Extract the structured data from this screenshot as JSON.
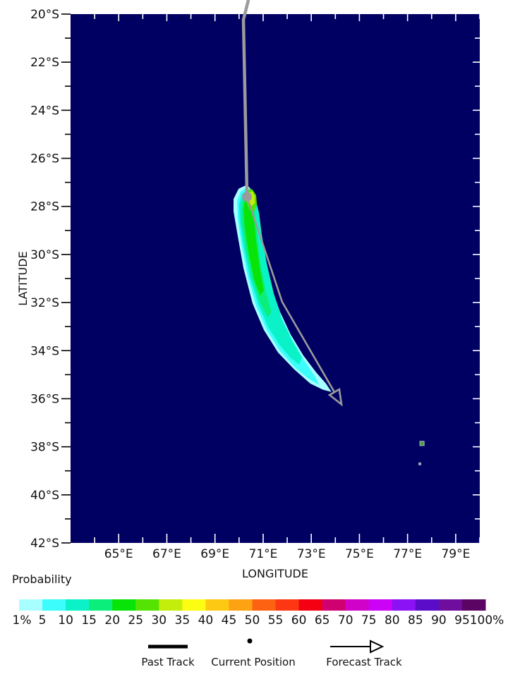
{
  "chart_data": {
    "type": "heatmap",
    "title": "",
    "xlabel": "LONGITUDE",
    "ylabel": "LATITUDE",
    "lon_range": [
      63,
      80
    ],
    "lat_range": [
      20,
      42
    ],
    "lon_tick_labels": [
      "65°E",
      "67°E",
      "69°E",
      "71°E",
      "73°E",
      "75°E",
      "77°E",
      "79°E"
    ],
    "lon_tick_values": [
      65,
      67,
      69,
      71,
      73,
      75,
      77,
      79
    ],
    "lat_tick_labels": [
      "20°S",
      "22°S",
      "24°S",
      "26°S",
      "28°S",
      "30°S",
      "32°S",
      "34°S",
      "36°S",
      "38°S",
      "40°S",
      "42°S"
    ],
    "lat_tick_values": [
      20,
      22,
      24,
      26,
      28,
      30,
      32,
      34,
      36,
      38,
      40,
      42
    ],
    "map_background": "#000063",
    "track_color": "#9b9b9b",
    "colorbar": {
      "title": "Probability",
      "tick_labels": [
        "1%",
        "5",
        "10",
        "15",
        "20",
        "25",
        "30",
        "35",
        "40",
        "45",
        "50",
        "55",
        "60",
        "65",
        "70",
        "75",
        "80",
        "85",
        "90",
        "95",
        "100%"
      ],
      "colors": [
        "#a8ffff",
        "#3cfcfc",
        "#0cf2c8",
        "#0cee7c",
        "#08e408",
        "#55e303",
        "#c3ee0b",
        "#fdfd12",
        "#fdc912",
        "#fda312",
        "#fd6212",
        "#fd3712",
        "#f50013",
        "#d10070",
        "#d002c9",
        "#cb02f5",
        "#8a12f5",
        "#5a0cc8",
        "#6e0d9e",
        "#5c0464"
      ]
    },
    "past_track": [
      [
        70.39,
        19.41
      ],
      [
        70.18,
        20.23
      ],
      [
        70.33,
        27.6
      ]
    ],
    "current_position": [
      70.33,
      27.6
    ],
    "forecast_track": [
      [
        70.33,
        27.6
      ],
      [
        71.79,
        31.97
      ],
      [
        74.08,
        35.93
      ]
    ],
    "probability_contours": [
      {
        "level": "1",
        "color": "#a8ffff",
        "points": [
          [
            70.33,
            27.1
          ],
          [
            69.98,
            27.27
          ],
          [
            69.77,
            27.69
          ],
          [
            69.77,
            28.21
          ],
          [
            69.92,
            29.09
          ],
          [
            70.18,
            30.56
          ],
          [
            70.56,
            32.03
          ],
          [
            71.03,
            33.14
          ],
          [
            71.62,
            34.08
          ],
          [
            72.29,
            34.78
          ],
          [
            72.96,
            35.37
          ],
          [
            73.49,
            35.63
          ],
          [
            73.84,
            35.72
          ],
          [
            73.61,
            35.37
          ],
          [
            73.2,
            34.9
          ],
          [
            72.67,
            34.2
          ],
          [
            72.14,
            33.32
          ],
          [
            71.7,
            32.38
          ],
          [
            71.32,
            31.32
          ],
          [
            71.0,
            30.15
          ],
          [
            70.77,
            28.98
          ],
          [
            70.65,
            28.04
          ],
          [
            70.53,
            27.33
          ]
        ]
      },
      {
        "level": "5",
        "color": "#3cfcfc",
        "points": [
          [
            70.33,
            27.22
          ],
          [
            70.06,
            27.39
          ],
          [
            69.92,
            27.8
          ],
          [
            69.95,
            28.51
          ],
          [
            70.09,
            29.53
          ],
          [
            70.36,
            30.91
          ],
          [
            70.71,
            32.14
          ],
          [
            71.15,
            33.14
          ],
          [
            71.7,
            34.02
          ],
          [
            72.32,
            34.7
          ],
          [
            72.88,
            35.16
          ],
          [
            73.32,
            35.43
          ],
          [
            73.17,
            35.1
          ],
          [
            72.7,
            34.4
          ],
          [
            72.2,
            33.52
          ],
          [
            71.73,
            32.55
          ],
          [
            71.35,
            31.47
          ],
          [
            71.06,
            30.27
          ],
          [
            70.85,
            29.09
          ],
          [
            70.71,
            28.15
          ],
          [
            70.56,
            27.39
          ]
        ]
      },
      {
        "level": "10",
        "color": "#0cf2c8",
        "points": [
          [
            70.33,
            27.3
          ],
          [
            70.12,
            27.51
          ],
          [
            70.0,
            27.92
          ],
          [
            70.03,
            28.62
          ],
          [
            70.18,
            29.62
          ],
          [
            70.44,
            30.91
          ],
          [
            70.8,
            32.08
          ],
          [
            71.21,
            33.02
          ],
          [
            71.7,
            33.79
          ],
          [
            72.14,
            34.31
          ],
          [
            72.5,
            34.58
          ],
          [
            72.61,
            34.28
          ],
          [
            72.23,
            33.64
          ],
          [
            71.79,
            32.7
          ],
          [
            71.44,
            31.62
          ],
          [
            71.15,
            30.38
          ],
          [
            70.94,
            29.15
          ],
          [
            70.83,
            28.27
          ],
          [
            70.62,
            27.45
          ]
        ]
      },
      {
        "level": "15",
        "color": "#0cee7c",
        "points": [
          [
            70.36,
            27.36
          ],
          [
            70.18,
            27.6
          ],
          [
            70.09,
            28.04
          ],
          [
            70.12,
            28.74
          ],
          [
            70.27,
            29.74
          ],
          [
            70.53,
            30.97
          ],
          [
            70.86,
            31.97
          ],
          [
            71.18,
            32.61
          ],
          [
            71.35,
            32.41
          ],
          [
            71.12,
            31.56
          ],
          [
            70.91,
            30.5
          ],
          [
            70.77,
            29.39
          ],
          [
            70.68,
            28.45
          ],
          [
            70.56,
            27.57
          ]
        ]
      },
      {
        "level": "20",
        "color": "#08e408",
        "points": [
          [
            70.39,
            27.42
          ],
          [
            70.24,
            27.69
          ],
          [
            70.18,
            28.13
          ],
          [
            70.24,
            28.92
          ],
          [
            70.39,
            29.91
          ],
          [
            70.62,
            31.03
          ],
          [
            70.88,
            31.7
          ],
          [
            71.03,
            31.5
          ],
          [
            70.86,
            30.56
          ],
          [
            70.71,
            29.44
          ],
          [
            70.62,
            28.45
          ],
          [
            70.53,
            27.66
          ]
        ]
      },
      {
        "level": "25",
        "color": "#55e303",
        "points": [
          [
            70.44,
            27.27
          ],
          [
            70.3,
            27.45
          ],
          [
            70.3,
            27.8
          ],
          [
            70.44,
            28.15
          ],
          [
            70.62,
            28.21
          ],
          [
            70.74,
            27.92
          ],
          [
            70.71,
            27.54
          ],
          [
            70.56,
            27.3
          ]
        ]
      },
      {
        "level": "30",
        "color": "#c3ee0b",
        "points": [
          [
            70.47,
            27.39
          ],
          [
            70.38,
            27.57
          ],
          [
            70.41,
            27.83
          ],
          [
            70.53,
            27.98
          ],
          [
            70.65,
            27.86
          ],
          [
            70.65,
            27.57
          ],
          [
            70.56,
            27.39
          ]
        ]
      }
    ],
    "islands": [
      {
        "lon": 77.6,
        "lat": 37.86,
        "fill": "#3f9f3f",
        "edge": "#c0c0c0",
        "size": 6
      },
      {
        "lon": 77.51,
        "lat": 38.71,
        "fill": "#a0a0b8",
        "edge": "#a0a0b8",
        "size": 3
      }
    ],
    "legend": [
      {
        "symbol": "thick-line",
        "label": "Past Track"
      },
      {
        "symbol": "dot",
        "label": "Current Position"
      },
      {
        "symbol": "arrow",
        "label": "Forecast Track"
      }
    ],
    "legend_color": "#000000"
  }
}
